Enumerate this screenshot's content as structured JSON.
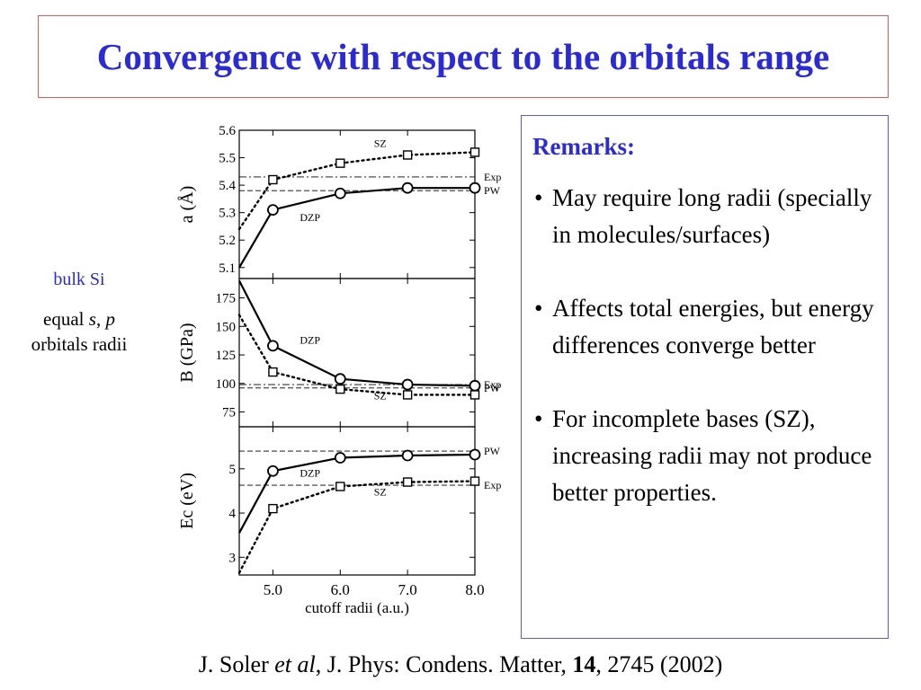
{
  "title": "Convergence with respect to the orbitals range",
  "left_note": {
    "bulk": "bulk Si",
    "equal_prefix": "equal ",
    "s": "s",
    "comma": ", ",
    "p": "p",
    "line2": "orbitals radii"
  },
  "remarks": {
    "heading": "Remarks:",
    "items": [
      "May require long radii (specially in molecules/surfaces)",
      "Affects total energies, but energy differences converge better",
      "For incomplete bases (SZ), increasing radii may not produce better properties."
    ]
  },
  "citation": {
    "author": "J. Soler ",
    "etal": "et al",
    "journal": ", J. Phys: Condens. Matter, ",
    "volume": "14",
    "rest": ", 2745 (2002)"
  },
  "colors": {
    "title": "#2b2bd6",
    "title_border": "#e05a5a",
    "remarks_border": "#5c5ccc",
    "remarks_heading": "#2b2bd6",
    "bulk_label": "#2b2bd6"
  },
  "chart_data": [
    {
      "type": "line",
      "ylabel": "a (Å)",
      "xlabel": "",
      "xlim": [
        4.5,
        8.0
      ],
      "ylim": [
        5.06,
        5.6
      ],
      "yticks": [
        5.1,
        5.2,
        5.3,
        5.4,
        5.5,
        5.6
      ],
      "yticklabels": [
        "5.1",
        "5.2",
        "5.3",
        "5.4",
        "5.5",
        "5.6"
      ],
      "series": [
        {
          "name": "DZP",
          "style": "solid",
          "marker": "circle",
          "x": [
            4.5,
            5.0,
            6.0,
            7.0,
            8.0
          ],
          "y": [
            5.1,
            5.31,
            5.37,
            5.39,
            5.39
          ],
          "marker_x": [
            5.0,
            6.0,
            7.0,
            8.0
          ],
          "marker_y": [
            5.31,
            5.37,
            5.39,
            5.39
          ]
        },
        {
          "name": "SZ",
          "style": "dotted",
          "marker": "square",
          "x": [
            4.5,
            5.0,
            6.0,
            7.0,
            8.0
          ],
          "y": [
            5.24,
            5.42,
            5.48,
            5.51,
            5.52
          ],
          "marker_x": [
            5.0,
            6.0,
            7.0,
            8.0
          ],
          "marker_y": [
            5.42,
            5.48,
            5.51,
            5.52
          ]
        }
      ],
      "reference_lines": [
        {
          "name": "Exp",
          "style": "dashdot",
          "y": 5.43
        },
        {
          "name": "PW",
          "style": "dashed",
          "y": 5.38
        }
      ],
      "annotations": [
        {
          "text": "SZ",
          "x": 6.5,
          "y": 5.54
        },
        {
          "text": "DZP",
          "x": 5.4,
          "y": 5.27
        }
      ]
    },
    {
      "type": "line",
      "ylabel": "B (GPa)",
      "xlabel": "",
      "xlim": [
        4.5,
        8.0
      ],
      "ylim": [
        62,
        192
      ],
      "yticks": [
        75,
        100,
        125,
        150,
        175
      ],
      "yticklabels": [
        "75",
        "100",
        "125",
        "150",
        "175"
      ],
      "series": [
        {
          "name": "DZP",
          "style": "solid",
          "marker": "circle",
          "x": [
            4.5,
            5.0,
            6.0,
            7.0,
            8.0
          ],
          "y": [
            190,
            133,
            104,
            99,
            98
          ],
          "marker_x": [
            5.0,
            6.0,
            7.0,
            8.0
          ],
          "marker_y": [
            133,
            104,
            99,
            98
          ]
        },
        {
          "name": "SZ",
          "style": "dotted",
          "marker": "square",
          "x": [
            4.5,
            5.0,
            6.0,
            7.0,
            8.0
          ],
          "y": [
            160,
            110,
            95,
            90,
            90
          ],
          "marker_x": [
            5.0,
            6.0,
            7.0,
            8.0
          ],
          "marker_y": [
            110,
            95,
            90,
            90
          ]
        }
      ],
      "reference_lines": [
        {
          "name": "Exp",
          "style": "dashdot",
          "y": 99
        },
        {
          "name": "PW",
          "style": "dashed",
          "y": 96
        }
      ],
      "annotations": [
        {
          "text": "DZP",
          "x": 5.4,
          "y": 135
        },
        {
          "text": "SZ",
          "x": 6.5,
          "y": 86
        }
      ]
    },
    {
      "type": "line",
      "ylabel": "Ec (eV)",
      "xlabel": "cutoff radii (a.u.)",
      "xlim": [
        4.5,
        8.0
      ],
      "ylim": [
        2.6,
        5.95
      ],
      "yticks": [
        3,
        4,
        5
      ],
      "yticklabels": [
        "3",
        "4",
        "5"
      ],
      "xticks": [
        5.0,
        6.0,
        7.0,
        8.0
      ],
      "xticklabels": [
        "5.0",
        "6.0",
        "7.0",
        "8.0"
      ],
      "series": [
        {
          "name": "DZP",
          "style": "solid",
          "marker": "circle",
          "x": [
            4.5,
            5.0,
            6.0,
            7.0,
            8.0
          ],
          "y": [
            3.55,
            4.95,
            5.25,
            5.3,
            5.32
          ],
          "marker_x": [
            5.0,
            6.0,
            7.0,
            8.0
          ],
          "marker_y": [
            4.95,
            5.25,
            5.3,
            5.32
          ]
        },
        {
          "name": "SZ",
          "style": "dotted",
          "marker": "square",
          "x": [
            4.5,
            5.0,
            6.0,
            7.0,
            8.0
          ],
          "y": [
            2.65,
            4.1,
            4.6,
            4.7,
            4.72
          ],
          "marker_x": [
            5.0,
            6.0,
            7.0,
            8.0
          ],
          "marker_y": [
            4.1,
            4.6,
            4.7,
            4.72
          ]
        }
      ],
      "reference_lines": [
        {
          "name": "PW",
          "style": "dashed",
          "y": 5.4
        },
        {
          "name": "Exp",
          "style": "dashed",
          "y": 4.63
        }
      ],
      "annotations": [
        {
          "text": "DZP",
          "x": 5.4,
          "y": 4.82
        },
        {
          "text": "SZ",
          "x": 6.5,
          "y": 4.4
        }
      ]
    }
  ]
}
